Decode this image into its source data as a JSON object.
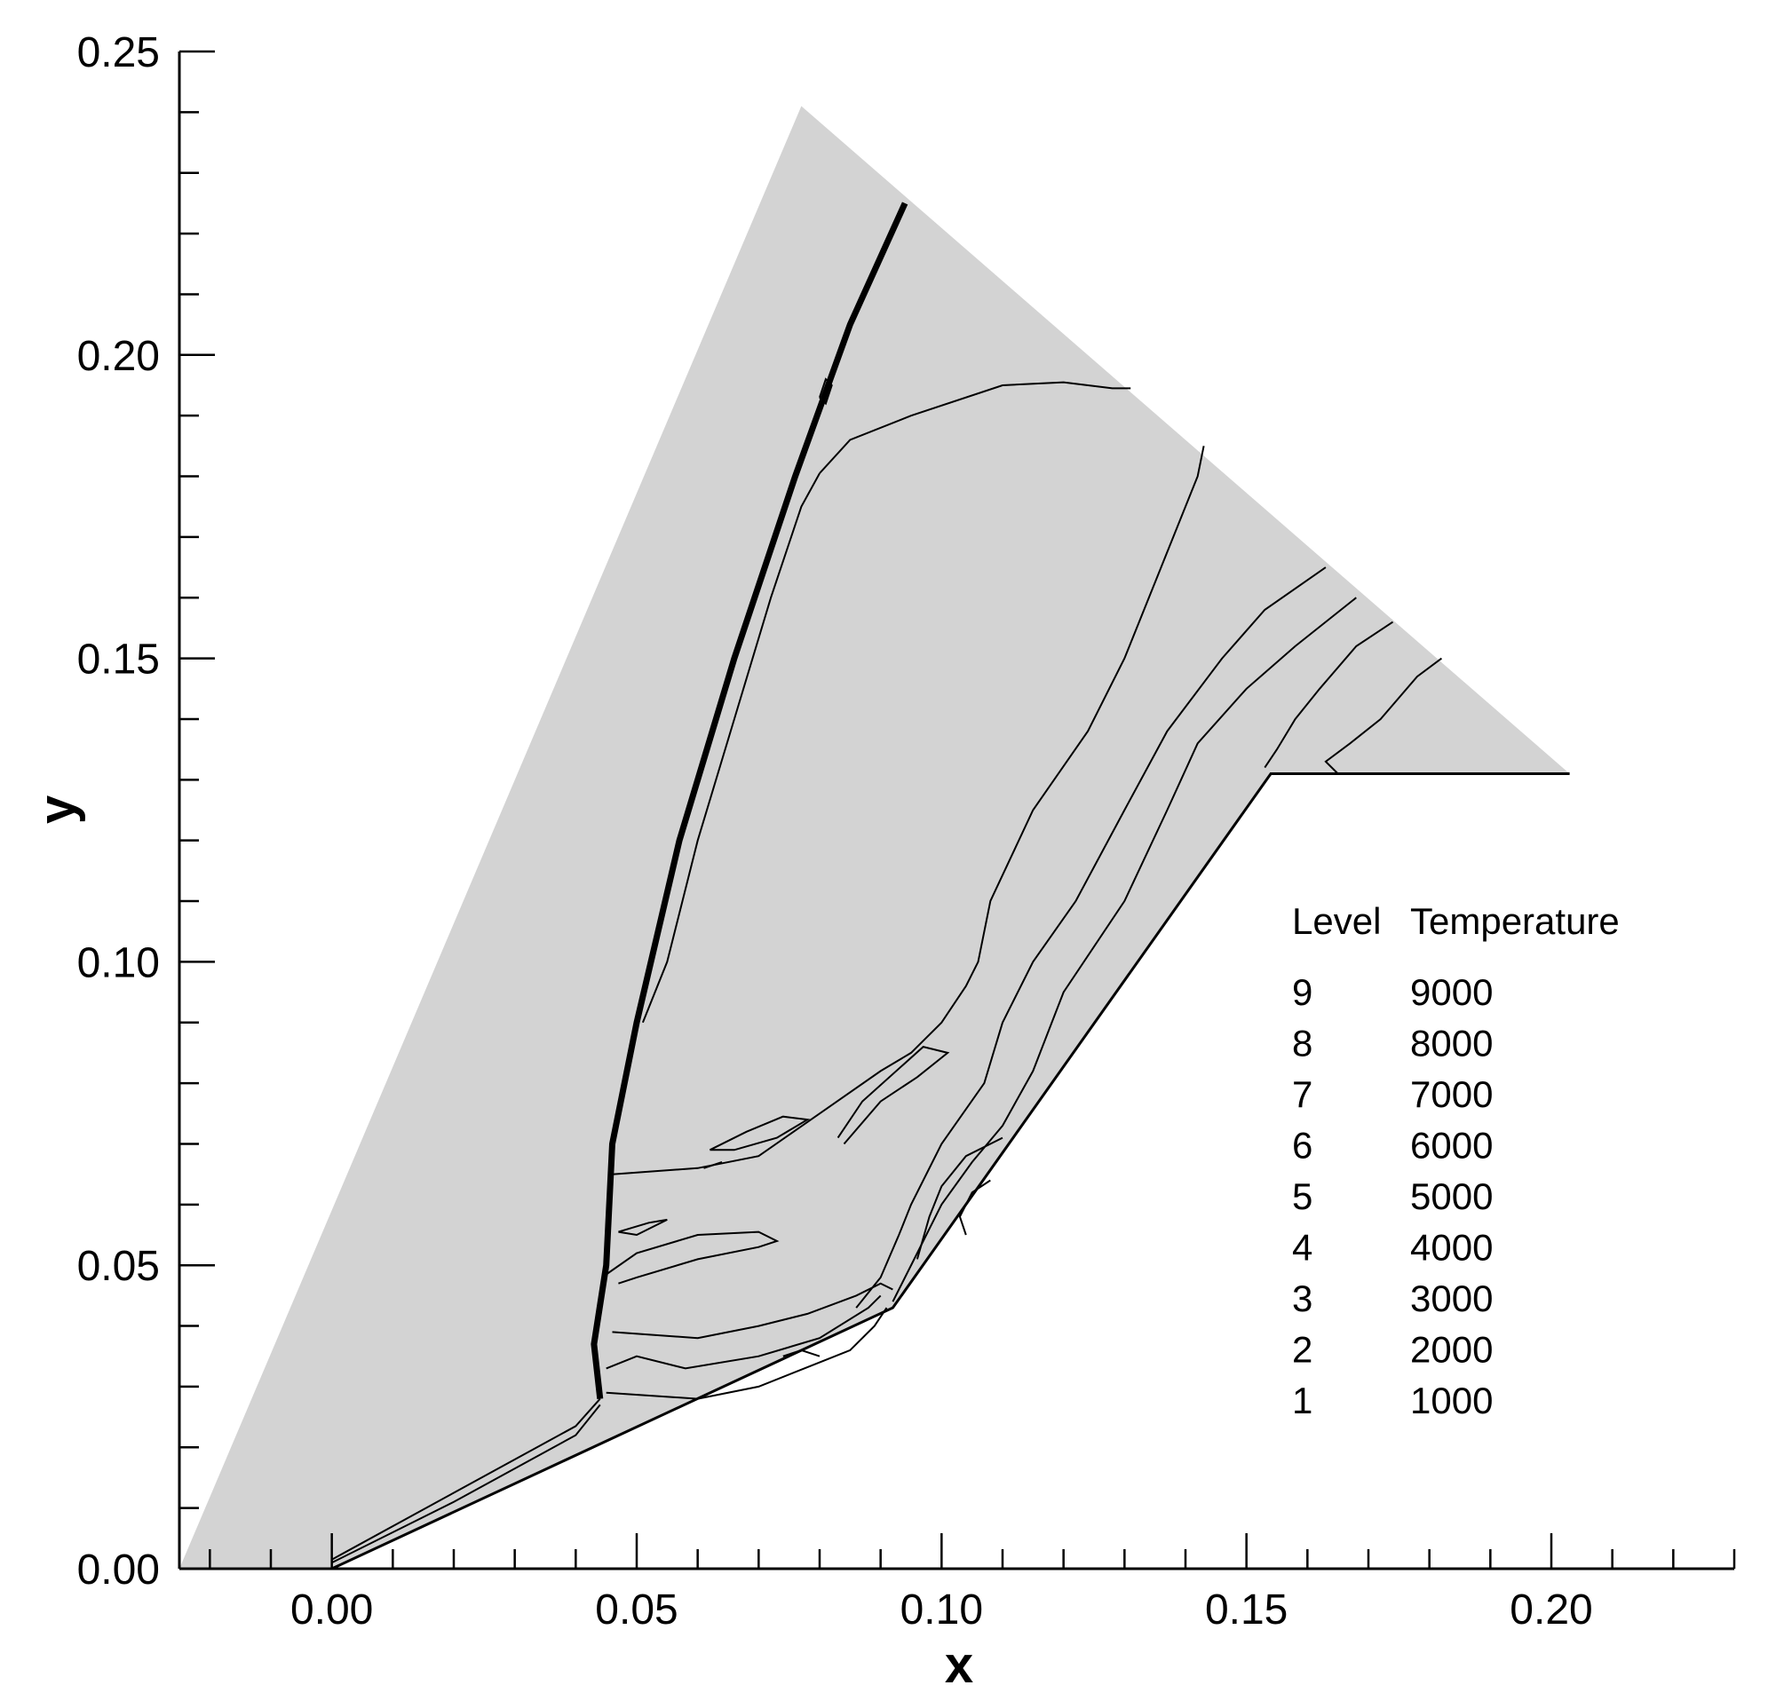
{
  "chart_data": {
    "type": "contour",
    "xlabel": "x",
    "ylabel": "y",
    "xlim": [
      -0.025,
      0.23
    ],
    "ylim": [
      0,
      0.25
    ],
    "x_ticks": [
      "0.00",
      "0.05",
      "0.10",
      "0.15",
      "0.20"
    ],
    "x_tick_values": [
      0,
      0.05,
      0.1,
      0.15,
      0.2
    ],
    "y_ticks": [
      "0.00",
      "0.05",
      "0.10",
      "0.15",
      "0.20",
      "0.25"
    ],
    "y_tick_values": [
      0,
      0.05,
      0.1,
      0.15,
      0.2,
      0.25
    ],
    "x_minor_step": 0.01,
    "y_minor_step": 0.01,
    "variable": "Temperature",
    "legend": {
      "header_level": "Level",
      "header_value": "Temperature",
      "position": "right",
      "entries": [
        {
          "level": "9",
          "value": "9000"
        },
        {
          "level": "8",
          "value": "8000"
        },
        {
          "level": "7",
          "value": "7000"
        },
        {
          "level": "6",
          "value": "6000"
        },
        {
          "level": "5",
          "value": "5000"
        },
        {
          "level": "4",
          "value": "4000"
        },
        {
          "level": "3",
          "value": "3000"
        },
        {
          "level": "2",
          "value": "2000"
        },
        {
          "level": "1",
          "value": "1000"
        }
      ]
    },
    "domain_boundary": [
      [
        -0.025,
        0.0
      ],
      [
        0.0,
        0.0
      ],
      [
        0.092,
        0.043
      ],
      [
        0.154,
        0.131
      ],
      [
        0.203,
        0.131
      ],
      [
        0.077,
        0.241
      ],
      [
        -0.025,
        0.0
      ]
    ],
    "wall": [
      [
        0.0,
        0.0
      ],
      [
        0.092,
        0.043
      ],
      [
        0.154,
        0.131
      ],
      [
        0.203,
        0.131
      ]
    ],
    "shock": [
      [
        0.044,
        0.028
      ],
      [
        0.043,
        0.037
      ],
      [
        0.045,
        0.05
      ],
      [
        0.046,
        0.07
      ],
      [
        0.05,
        0.09
      ],
      [
        0.057,
        0.12
      ],
      [
        0.066,
        0.15
      ],
      [
        0.076,
        0.18
      ],
      [
        0.085,
        0.205
      ],
      [
        0.094,
        0.225
      ]
    ],
    "contours": [
      [
        [
          0.0,
          0.001
        ],
        [
          0.02,
          0.011
        ],
        [
          0.04,
          0.022
        ],
        [
          0.044,
          0.027
        ]
      ],
      [
        [
          0.0,
          0.0015
        ],
        [
          0.02,
          0.0125
        ],
        [
          0.04,
          0.0235
        ],
        [
          0.044,
          0.028
        ]
      ],
      [
        [
          0.045,
          0.029
        ],
        [
          0.06,
          0.028
        ],
        [
          0.07,
          0.03
        ],
        [
          0.08,
          0.034
        ],
        [
          0.085,
          0.036
        ],
        [
          0.089,
          0.04
        ],
        [
          0.091,
          0.043
        ]
      ],
      [
        [
          0.045,
          0.033
        ],
        [
          0.05,
          0.035
        ],
        [
          0.058,
          0.033
        ],
        [
          0.07,
          0.035
        ],
        [
          0.08,
          0.038
        ],
        [
          0.088,
          0.043
        ],
        [
          0.09,
          0.045
        ]
      ],
      [
        [
          0.046,
          0.039
        ],
        [
          0.06,
          0.038
        ],
        [
          0.07,
          0.04
        ],
        [
          0.078,
          0.042
        ],
        [
          0.086,
          0.045
        ],
        [
          0.09,
          0.047
        ],
        [
          0.092,
          0.046
        ]
      ],
      [
        [
          0.045,
          0.0485
        ],
        [
          0.05,
          0.052
        ],
        [
          0.06,
          0.055
        ],
        [
          0.07,
          0.0555
        ],
        [
          0.073,
          0.054
        ],
        [
          0.07,
          0.053
        ],
        [
          0.06,
          0.051
        ],
        [
          0.05,
          0.048
        ],
        [
          0.047,
          0.047
        ]
      ],
      [
        [
          0.047,
          0.0555
        ],
        [
          0.052,
          0.057
        ],
        [
          0.055,
          0.0575
        ],
        [
          0.05,
          0.055
        ],
        [
          0.047,
          0.0555
        ]
      ],
      [
        [
          0.046,
          0.065
        ],
        [
          0.06,
          0.066
        ],
        [
          0.07,
          0.068
        ],
        [
          0.08,
          0.075
        ],
        [
          0.09,
          0.082
        ],
        [
          0.095,
          0.085
        ],
        [
          0.1,
          0.09
        ],
        [
          0.104,
          0.096
        ],
        [
          0.106,
          0.1
        ],
        [
          0.108,
          0.11
        ],
        [
          0.115,
          0.125
        ],
        [
          0.124,
          0.138
        ],
        [
          0.13,
          0.15
        ],
        [
          0.136,
          0.165
        ],
        [
          0.142,
          0.18
        ],
        [
          0.143,
          0.185
        ]
      ],
      [
        [
          0.086,
          0.043
        ],
        [
          0.09,
          0.048
        ],
        [
          0.093,
          0.055
        ],
        [
          0.095,
          0.06
        ],
        [
          0.1,
          0.07
        ],
        [
          0.107,
          0.08
        ],
        [
          0.11,
          0.09
        ],
        [
          0.115,
          0.1
        ],
        [
          0.122,
          0.11
        ],
        [
          0.13,
          0.125
        ],
        [
          0.137,
          0.138
        ],
        [
          0.146,
          0.15
        ],
        [
          0.153,
          0.158
        ],
        [
          0.163,
          0.165
        ]
      ],
      [
        [
          0.092,
          0.044
        ],
        [
          0.096,
          0.052
        ],
        [
          0.1,
          0.06
        ],
        [
          0.105,
          0.067
        ],
        [
          0.11,
          0.073
        ],
        [
          0.115,
          0.082
        ],
        [
          0.12,
          0.095
        ],
        [
          0.13,
          0.11
        ],
        [
          0.137,
          0.125
        ],
        [
          0.142,
          0.136
        ],
        [
          0.15,
          0.145
        ],
        [
          0.158,
          0.152
        ],
        [
          0.168,
          0.16
        ]
      ],
      [
        [
          0.096,
          0.051
        ],
        [
          0.098,
          0.058
        ],
        [
          0.1,
          0.063
        ],
        [
          0.104,
          0.068
        ],
        [
          0.11,
          0.071
        ]
      ],
      [
        [
          0.104,
          0.055
        ],
        [
          0.103,
          0.058
        ],
        [
          0.105,
          0.062
        ],
        [
          0.108,
          0.064
        ]
      ],
      [
        [
          0.074,
          0.035
        ],
        [
          0.077,
          0.036
        ],
        [
          0.08,
          0.035
        ]
      ],
      [
        [
          0.153,
          0.132
        ],
        [
          0.155,
          0.135
        ],
        [
          0.158,
          0.14
        ],
        [
          0.162,
          0.145
        ],
        [
          0.168,
          0.152
        ],
        [
          0.174,
          0.156
        ]
      ],
      [
        [
          0.165,
          0.131
        ],
        [
          0.163,
          0.133
        ],
        [
          0.167,
          0.136
        ],
        [
          0.172,
          0.14
        ],
        [
          0.178,
          0.147
        ],
        [
          0.182,
          0.15
        ]
      ],
      [
        [
          0.08,
          0.1805
        ],
        [
          0.085,
          0.186
        ],
        [
          0.095,
          0.19
        ],
        [
          0.11,
          0.195
        ],
        [
          0.12,
          0.1955
        ],
        [
          0.128,
          0.1945
        ],
        [
          0.131,
          0.1945
        ]
      ],
      [
        [
          0.08,
          0.1805
        ],
        [
          0.077,
          0.175
        ],
        [
          0.072,
          0.16
        ],
        [
          0.066,
          0.14
        ],
        [
          0.06,
          0.12
        ],
        [
          0.055,
          0.1
        ],
        [
          0.051,
          0.09
        ]
      ],
      [
        [
          0.062,
          0.069
        ],
        [
          0.068,
          0.072
        ],
        [
          0.074,
          0.0745
        ],
        [
          0.078,
          0.074
        ],
        [
          0.073,
          0.071
        ],
        [
          0.066,
          0.069
        ],
        [
          0.062,
          0.069
        ]
      ],
      [
        [
          0.061,
          0.066
        ],
        [
          0.064,
          0.067
        ]
      ],
      [
        [
          0.083,
          0.071
        ],
        [
          0.087,
          0.077
        ],
        [
          0.097,
          0.086
        ],
        [
          0.101,
          0.085
        ],
        [
          0.096,
          0.081
        ],
        [
          0.09,
          0.077
        ],
        [
          0.084,
          0.07
        ]
      ],
      [
        [
          0.08,
          0.193
        ],
        [
          0.081,
          0.196
        ],
        [
          0.082,
          0.195
        ],
        [
          0.081,
          0.192
        ],
        [
          0.08,
          0.193
        ]
      ]
    ]
  }
}
